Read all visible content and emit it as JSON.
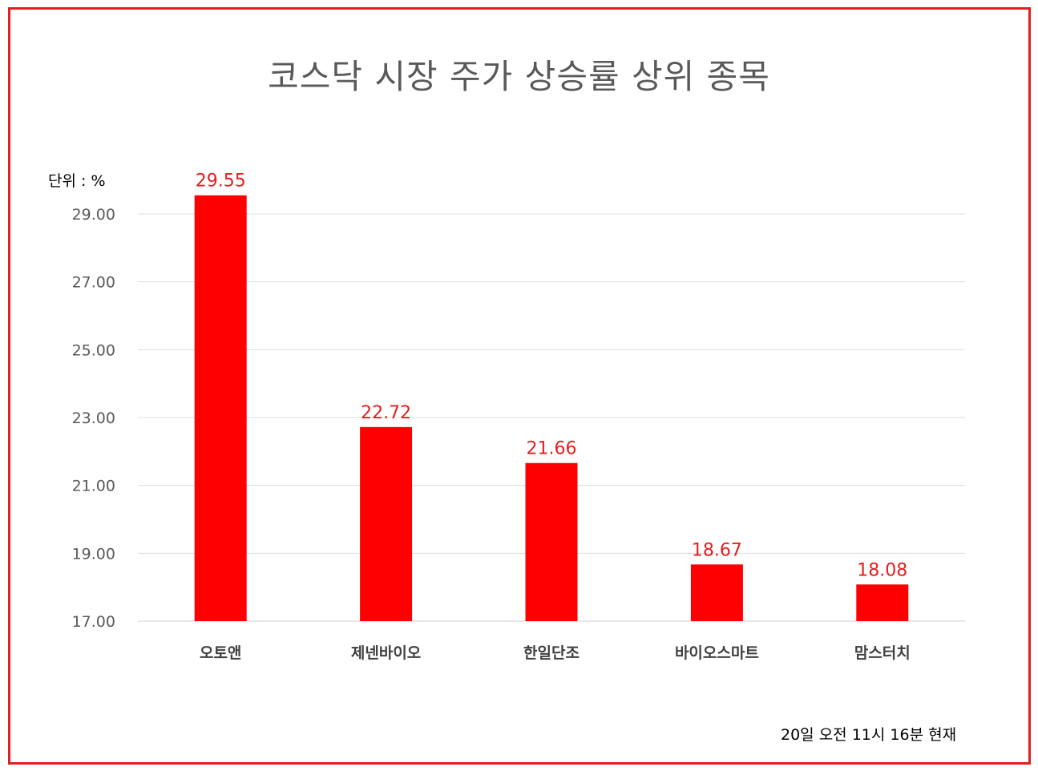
{
  "chart_data": {
    "type": "bar",
    "title": "코스닥 시장 주가 상승률 상위 종목",
    "unit_label": "단위 : %",
    "footnote": "20일  오전 11시 16분 현재",
    "categories": [
      "오토앤",
      "제넨바이오",
      "한일단조",
      "바이오스마트",
      "맘스터치"
    ],
    "values": [
      29.55,
      22.72,
      21.66,
      18.67,
      18.08
    ],
    "value_labels": [
      "29.55",
      "22.72",
      "21.66",
      "18.67",
      "18.08"
    ],
    "yticks": [
      17,
      19,
      21,
      23,
      25,
      27,
      29
    ],
    "ytick_labels": [
      "17.00",
      "19.00",
      "21.00",
      "23.00",
      "25.00",
      "27.00",
      "29.00"
    ],
    "ylim": [
      17,
      29
    ],
    "grid": true,
    "bar_color": "#ff0000",
    "label_color": "#e41e1e"
  }
}
